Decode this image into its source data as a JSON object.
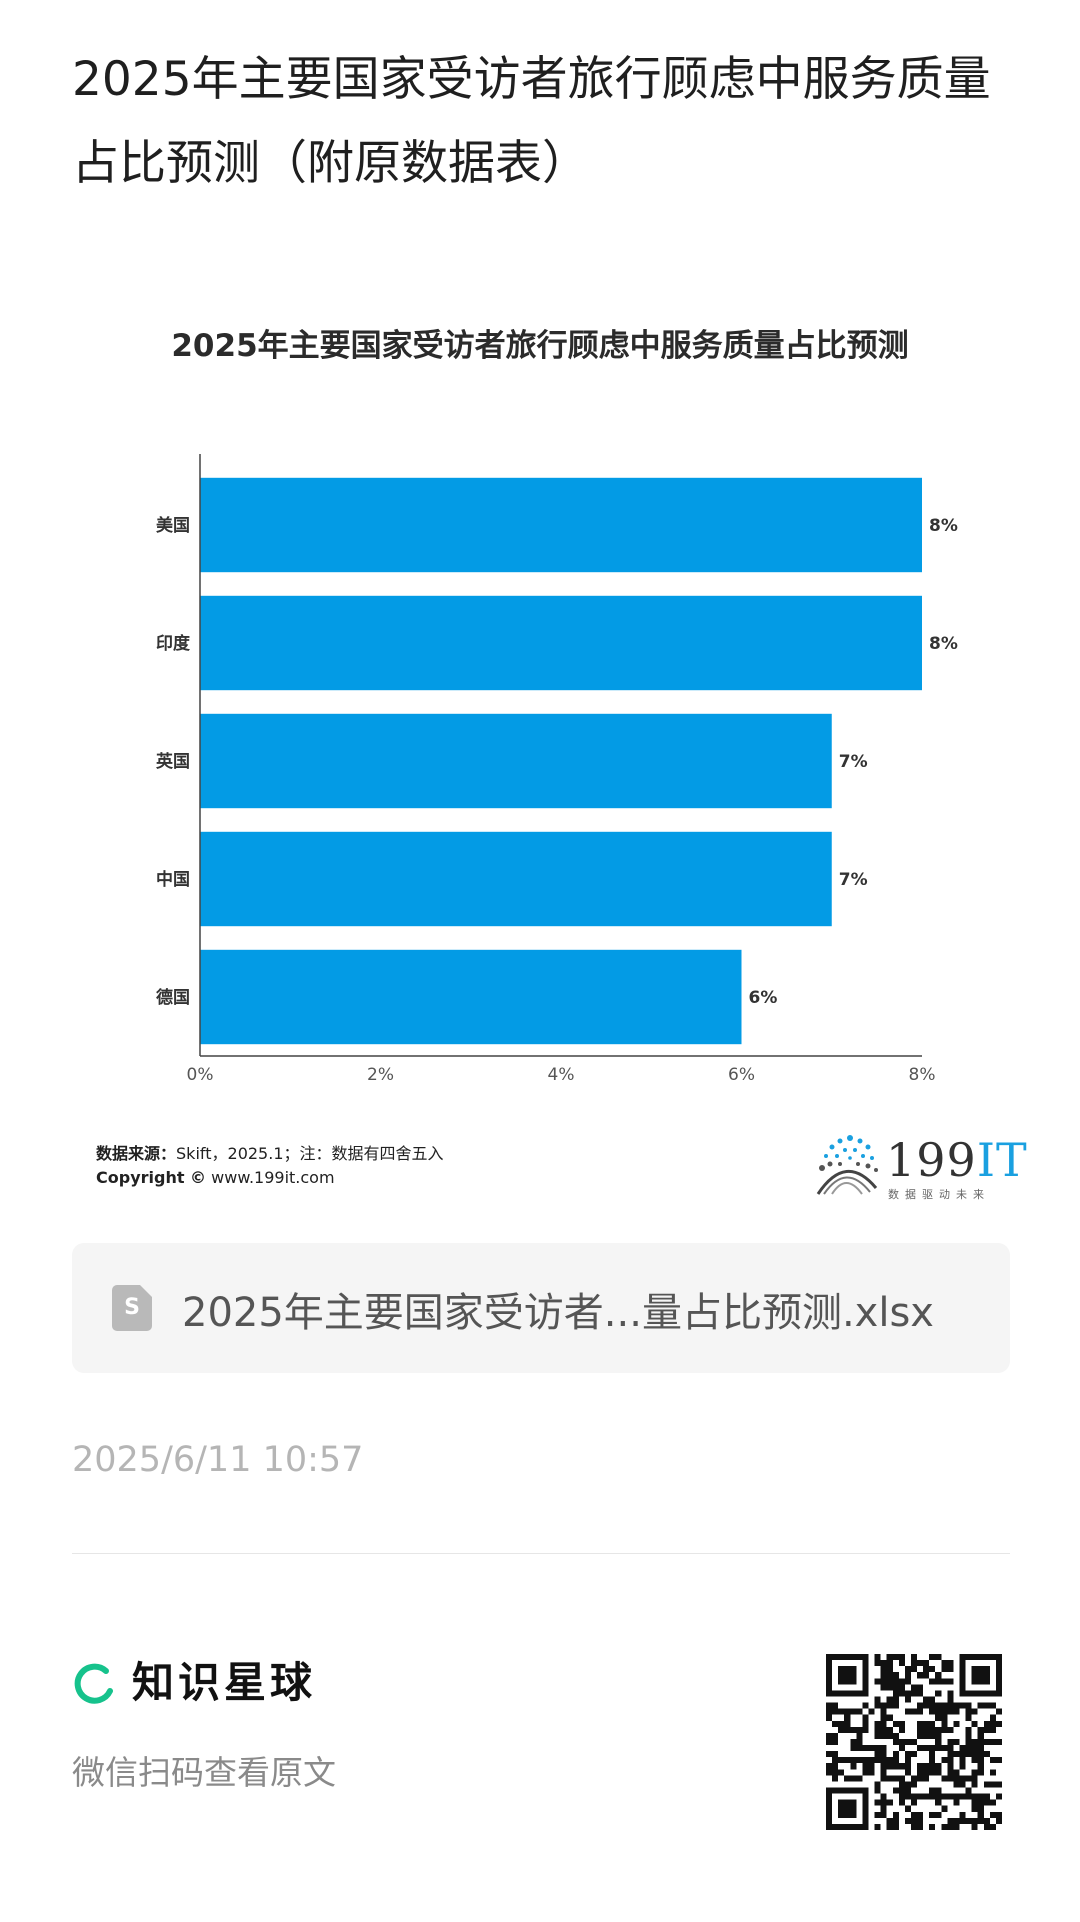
{
  "page": {
    "title": "2025年主要国家受访者旅行顾虑中服务质量占比预测（附原数据表）"
  },
  "chart": {
    "source_label": "数据来源：",
    "source_text": "Skift，2025.1；注：数据有四舍五入",
    "copyright_label": "Copyright ©",
    "copyright_text": " www.199it.com",
    "logo_number": "199",
    "logo_it": "IT",
    "logo_tagline": "数据驱动未来",
    "bar_color": "#039be5"
  },
  "chart_data": {
    "type": "bar",
    "orientation": "horizontal",
    "title": "2025年主要国家受访者旅行顾虑中服务质量占比预测",
    "categories": [
      "美国",
      "印度",
      "英国",
      "中国",
      "德国"
    ],
    "values": [
      8,
      8,
      7,
      7,
      6
    ],
    "value_labels": [
      "8%",
      "8%",
      "7%",
      "7%",
      "6%"
    ],
    "xlim": [
      0,
      8
    ],
    "x_ticks": [
      "0%",
      "2%",
      "4%",
      "6%",
      "8%"
    ],
    "xlabel": "",
    "ylabel": "",
    "grid": false,
    "legend": "none"
  },
  "file_card": {
    "icon": "spreadsheet-file-icon",
    "icon_letter": "S",
    "name": "2025年主要国家受访者...量占比预测.xlsx"
  },
  "meta": {
    "timestamp": "2025/6/11 10:57"
  },
  "footer": {
    "brand_icon": "zhishi-xingqiu-logo-icon",
    "brand_name": "知识星球",
    "scan_tip": "微信扫码查看原文",
    "qr_icon": "qr-code-icon"
  }
}
